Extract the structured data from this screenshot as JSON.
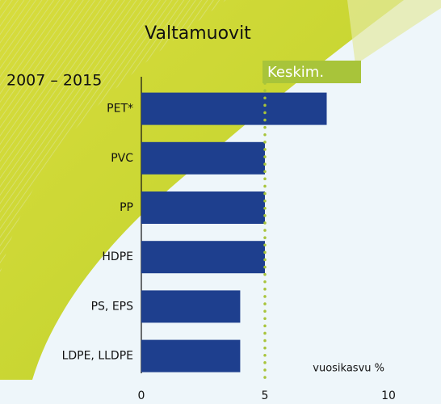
{
  "chart_data": {
    "type": "bar",
    "orientation": "horizontal",
    "title": "Valtamuovit",
    "subtitle": "2007 – 2015",
    "categories": [
      "PET*",
      "PVC",
      "PP",
      "HDPE",
      "PS, EPS",
      "LDPE, LLDPE"
    ],
    "values": [
      7.5,
      5,
      5,
      5,
      4,
      4
    ],
    "color": "#1e3f8e",
    "xlim": [
      0,
      10
    ],
    "xticks": [
      0,
      5,
      10
    ],
    "xlabel": "vuosikasvu %",
    "reference_line": {
      "value": 5,
      "label": "Keskim.",
      "color": "#a8c43a"
    }
  }
}
